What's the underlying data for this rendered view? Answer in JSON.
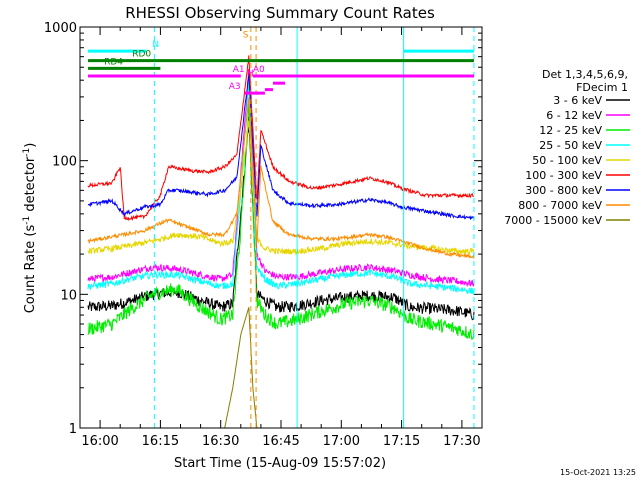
{
  "chart_data": {
    "type": "line",
    "title": "RHESSI Observing Summary Count Rates",
    "xlabel": "Start Time (15-Aug-09 15:57:02)",
    "ylabel_main": "Count Rate (s",
    "ylabel_sup1": "-1",
    "ylabel_mid": " detector",
    "ylabel_sup2": "-1",
    "ylabel_end": ")",
    "timestamp": "15-Oct-2021 13:25",
    "x_range_min": [
      -2,
      98
    ],
    "y_log": true,
    "ylim": [
      1,
      1000
    ],
    "x_ticks": [
      {
        "min": 3,
        "label": "16:00"
      },
      {
        "min": 18,
        "label": "16:15"
      },
      {
        "min": 33,
        "label": "16:30"
      },
      {
        "min": 48,
        "label": "16:45"
      },
      {
        "min": 63,
        "label": "17:00"
      },
      {
        "min": 78,
        "label": "17:15"
      },
      {
        "min": 93,
        "label": "17:30"
      }
    ],
    "y_ticks": [
      {
        "value": 1,
        "label": "1"
      },
      {
        "value": 10,
        "label": "10"
      },
      {
        "value": 100,
        "label": "100"
      },
      {
        "value": 1000,
        "label": "1000"
      }
    ],
    "legend": {
      "header": [
        "Det 1,3,4,5,6,9,",
        "FDecim 1"
      ],
      "placement": "right"
    },
    "series": [
      {
        "name": "3 - 6 keV",
        "color": "#000000",
        "base": 8.5,
        "noise": 0.1,
        "step": 1.3,
        "peak": 70,
        "hump": 1.15,
        "points": [
          [
            0,
            8
          ],
          [
            6,
            8.2
          ],
          [
            10,
            8.8
          ],
          [
            16,
            10
          ],
          [
            22,
            10.5
          ],
          [
            28,
            9
          ],
          [
            33,
            8
          ],
          [
            36,
            8.5
          ],
          [
            38,
            40
          ],
          [
            40,
            200
          ],
          [
            42,
            10
          ],
          [
            44,
            9
          ],
          [
            47,
            8
          ],
          [
            52,
            8.2
          ],
          [
            58,
            9
          ],
          [
            64,
            9.5
          ],
          [
            70,
            9.8
          ],
          [
            76,
            9.5
          ],
          [
            80,
            8
          ],
          [
            86,
            7.8
          ],
          [
            92,
            7.5
          ],
          [
            96,
            7
          ]
        ]
      },
      {
        "name": "6 - 12 keV",
        "color": "#ff00ff",
        "base": 14,
        "noise": 0.06,
        "step": 1.2,
        "peak": 120,
        "hump": 1.1,
        "points": [
          [
            0,
            13
          ],
          [
            6,
            13.5
          ],
          [
            10,
            14.5
          ],
          [
            16,
            16
          ],
          [
            22,
            15.5
          ],
          [
            28,
            14
          ],
          [
            33,
            13
          ],
          [
            36,
            14
          ],
          [
            38,
            80
          ],
          [
            40,
            480
          ],
          [
            42,
            20
          ],
          [
            44,
            15
          ],
          [
            47,
            13.5
          ],
          [
            52,
            13.5
          ],
          [
            58,
            14.5
          ],
          [
            64,
            15.5
          ],
          [
            70,
            16
          ],
          [
            76,
            15
          ],
          [
            80,
            14
          ],
          [
            86,
            13
          ],
          [
            92,
            12.5
          ],
          [
            96,
            12
          ]
        ]
      },
      {
        "name": "12 - 25 keV",
        "color": "#00ee00",
        "base": 6,
        "noise": 0.12,
        "step": 1.6,
        "peak": 30,
        "hump": 1.2,
        "points": [
          [
            0,
            5.5
          ],
          [
            6,
            6
          ],
          [
            10,
            7.5
          ],
          [
            16,
            10
          ],
          [
            22,
            11
          ],
          [
            28,
            8
          ],
          [
            33,
            6.5
          ],
          [
            36,
            7
          ],
          [
            38,
            30
          ],
          [
            40,
            250
          ],
          [
            42,
            9
          ],
          [
            44,
            7
          ],
          [
            47,
            6
          ],
          [
            52,
            6.5
          ],
          [
            58,
            7.5
          ],
          [
            64,
            8.5
          ],
          [
            70,
            9
          ],
          [
            76,
            8
          ],
          [
            80,
            6.5
          ],
          [
            86,
            6
          ],
          [
            92,
            5.5
          ],
          [
            96,
            5
          ]
        ]
      },
      {
        "name": "25 - 50 keV",
        "color": "#00ffff",
        "base": 11.5,
        "noise": 0.06,
        "step": 1.2,
        "peak": 60,
        "hump": 1.1,
        "points": [
          [
            0,
            11.5
          ],
          [
            6,
            12
          ],
          [
            10,
            13
          ],
          [
            16,
            14
          ],
          [
            22,
            14
          ],
          [
            28,
            12.5
          ],
          [
            33,
            11.5
          ],
          [
            36,
            12
          ],
          [
            38,
            60
          ],
          [
            40,
            380
          ],
          [
            42,
            16
          ],
          [
            44,
            13
          ],
          [
            47,
            11.5
          ],
          [
            52,
            12
          ],
          [
            58,
            13
          ],
          [
            64,
            14
          ],
          [
            70,
            14.5
          ],
          [
            76,
            13.5
          ],
          [
            80,
            12
          ],
          [
            86,
            11.5
          ],
          [
            92,
            11
          ],
          [
            96,
            10.5
          ]
        ]
      },
      {
        "name": "50 - 100 keV",
        "color": "#e6d600",
        "base": 20,
        "noise": 0.05,
        "step": 1.2,
        "peak": 60,
        "hump": 1.1,
        "points": [
          [
            0,
            21
          ],
          [
            6,
            22
          ],
          [
            10,
            23
          ],
          [
            16,
            25
          ],
          [
            22,
            28
          ],
          [
            28,
            27
          ],
          [
            33,
            24
          ],
          [
            36,
            25
          ],
          [
            38,
            60
          ],
          [
            40,
            200
          ],
          [
            42,
            26
          ],
          [
            44,
            22
          ],
          [
            47,
            21
          ],
          [
            52,
            21
          ],
          [
            58,
            22
          ],
          [
            64,
            24
          ],
          [
            70,
            25
          ],
          [
            76,
            24
          ],
          [
            80,
            23
          ],
          [
            86,
            22
          ],
          [
            92,
            21
          ],
          [
            96,
            21
          ]
        ]
      },
      {
        "name": "100 - 300 keV",
        "color": "#ff0000",
        "base": 65,
        "noise": 0.03,
        "step": 1.0,
        "peak": 120,
        "hump": 1.0,
        "points": [
          [
            0,
            65
          ],
          [
            6,
            68
          ],
          [
            8,
            90
          ],
          [
            9,
            37
          ],
          [
            14,
            38
          ],
          [
            18,
            55
          ],
          [
            20,
            90
          ],
          [
            22,
            88
          ],
          [
            26,
            84
          ],
          [
            30,
            82
          ],
          [
            34,
            90
          ],
          [
            37,
            110
          ],
          [
            40,
            600
          ],
          [
            42,
            50
          ],
          [
            43,
            170
          ],
          [
            46,
            90
          ],
          [
            50,
            70
          ],
          [
            56,
            62
          ],
          [
            62,
            66
          ],
          [
            66,
            70
          ],
          [
            70,
            74
          ],
          [
            74,
            70
          ],
          [
            78,
            62
          ],
          [
            84,
            55
          ],
          [
            90,
            55
          ],
          [
            96,
            55
          ]
        ]
      },
      {
        "name": "300 - 800 keV",
        "color": "#0000ff",
        "base": 47,
        "noise": 0.03,
        "step": 1.0,
        "peak": 90,
        "hump": 1.0,
        "points": [
          [
            0,
            47
          ],
          [
            6,
            50
          ],
          [
            9,
            40
          ],
          [
            14,
            45
          ],
          [
            18,
            47
          ],
          [
            20,
            60
          ],
          [
            22,
            60
          ],
          [
            26,
            58
          ],
          [
            30,
            56
          ],
          [
            34,
            60
          ],
          [
            37,
            75
          ],
          [
            40,
            450
          ],
          [
            42,
            38
          ],
          [
            43,
            130
          ],
          [
            46,
            60
          ],
          [
            50,
            48
          ],
          [
            56,
            46
          ],
          [
            62,
            47
          ],
          [
            66,
            49
          ],
          [
            70,
            51
          ],
          [
            74,
            49
          ],
          [
            78,
            45
          ],
          [
            84,
            42
          ],
          [
            90,
            39
          ],
          [
            96,
            37
          ]
        ]
      },
      {
        "name": "800 - 7000 keV",
        "color": "#ff8c00",
        "base": 25,
        "noise": 0.03,
        "step": 1.0,
        "peak": 60,
        "hump": 1.0,
        "points": [
          [
            0,
            25
          ],
          [
            6,
            27
          ],
          [
            9,
            28
          ],
          [
            14,
            30
          ],
          [
            18,
            34
          ],
          [
            20,
            36
          ],
          [
            22,
            34
          ],
          [
            26,
            31
          ],
          [
            30,
            28
          ],
          [
            34,
            28
          ],
          [
            37,
            40
          ],
          [
            40,
            300
          ],
          [
            42,
            24
          ],
          [
            43,
            90
          ],
          [
            46,
            35
          ],
          [
            50,
            28
          ],
          [
            56,
            26
          ],
          [
            62,
            26
          ],
          [
            66,
            27
          ],
          [
            70,
            28
          ],
          [
            74,
            27
          ],
          [
            78,
            25
          ],
          [
            84,
            22
          ],
          [
            90,
            20
          ],
          [
            96,
            19
          ]
        ]
      },
      {
        "name": "7000 - 15000 keV",
        "color": "#808000",
        "base": 1,
        "noise": 0.0,
        "step": 1.0,
        "peak": 1,
        "hump": 1.0,
        "points": [
          [
            34,
            1
          ],
          [
            36,
            2
          ],
          [
            38,
            5
          ],
          [
            40,
            8
          ],
          [
            41,
            2
          ],
          [
            42,
            1
          ]
        ]
      }
    ],
    "annotations": [
      {
        "label": "N",
        "color": "#00ffff",
        "x0": 0,
        "x1": 14.5,
        "y": 660,
        "label_x": 16
      },
      {
        "label": "N",
        "color": "#00ffff",
        "x0": 78.5,
        "x1": 96,
        "y": 660,
        "label_x": null
      },
      {
        "label": "RD0",
        "color": "#008000",
        "x0": 0,
        "x1": 22,
        "y": 560,
        "label_x": 11
      },
      {
        "label": "RD0",
        "color": "#008000",
        "x0": 22,
        "x1": 96,
        "y": 560,
        "label_x": null
      },
      {
        "label": "RD4",
        "color": "#008000",
        "x0": 0,
        "x1": 18,
        "y": 490,
        "label_x": 4
      },
      {
        "label": "A1",
        "color": "#ff00ff",
        "x0": 0,
        "x1": 38,
        "y": 430,
        "label_x": 36
      },
      {
        "label": "A0",
        "color": "#ff00ff",
        "x0": 41,
        "x1": 96,
        "y": 430,
        "label_x": 41
      },
      {
        "label": "A3",
        "color": "#ff00ff",
        "x0": 39,
        "x1": 44,
        "y": 320,
        "label_x": 35
      },
      {
        "label": "",
        "color": "#ff00ff",
        "x0": 44,
        "x1": 46,
        "y": 340,
        "label_x": null
      },
      {
        "label": "",
        "color": "#ff00ff",
        "x0": 46,
        "x1": 49,
        "y": 380,
        "label_x": null
      },
      {
        "label": "S",
        "color": "#ff8c00",
        "x0": null,
        "x1": null,
        "y": 780,
        "label_x": 38.5
      },
      {
        "label": "H",
        "color": "#ff00ff",
        "x0": null,
        "x1": null,
        "y": 400,
        "label_x": 39.5
      }
    ],
    "vlines": [
      {
        "x": 16.5,
        "color": "#00ffff",
        "style": "dashed"
      },
      {
        "x": 52,
        "color": "#00ffff",
        "style": "solid"
      },
      {
        "x": 78.5,
        "color": "#00ffff",
        "style": "solid"
      },
      {
        "x": 96,
        "color": "#00ffff",
        "style": "dashed"
      },
      {
        "x": 40.5,
        "color": "#ff8c00",
        "style": "dashed"
      },
      {
        "x": 41.8,
        "color": "#ff8c00",
        "style": "dashed"
      }
    ]
  }
}
